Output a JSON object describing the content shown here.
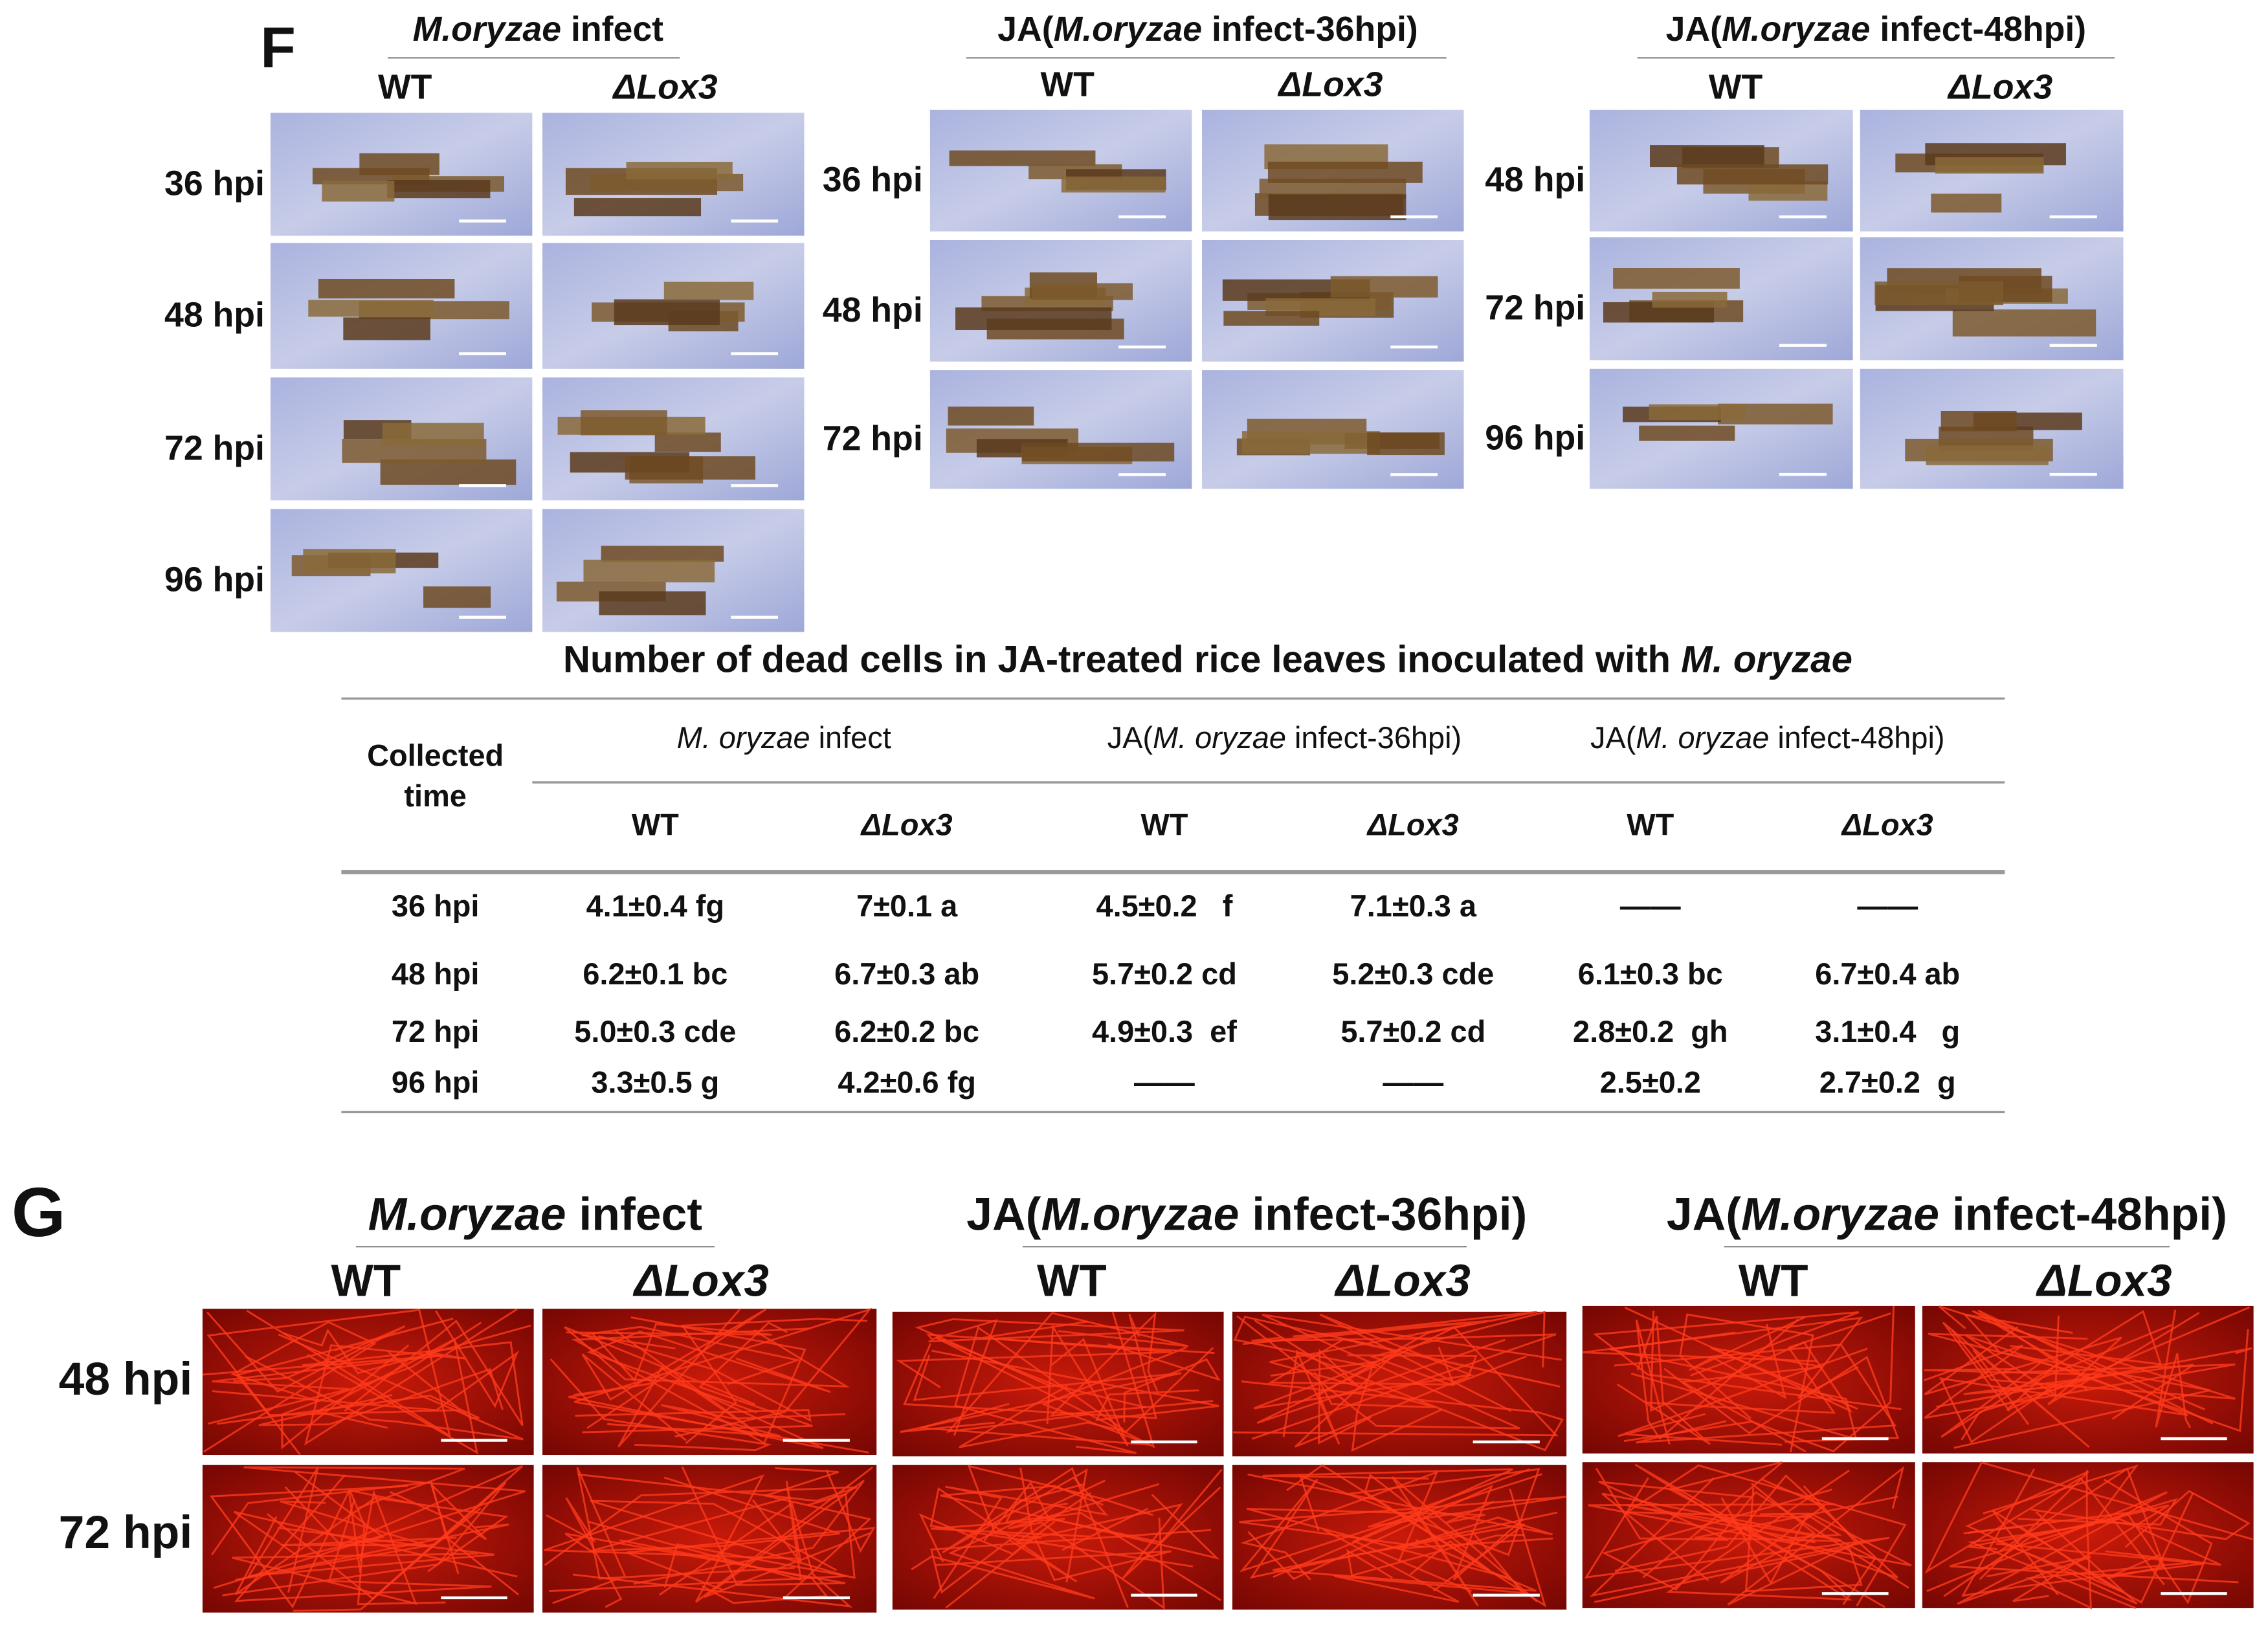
{
  "panel_f": {
    "label": "F",
    "columns": [
      "WT",
      "ΔLox3"
    ],
    "groups": [
      {
        "title_parts": [
          "M.oryzae",
          " infect"
        ],
        "italic_part": 0,
        "rows": [
          "36 hpi",
          "48 hpi",
          "72 hpi",
          "96 hpi"
        ]
      },
      {
        "title_parts": [
          "JA(",
          "M.oryzae",
          " infect-36hpi)"
        ],
        "italic_part": 1,
        "rows": [
          "36 hpi",
          "48 hpi",
          "72 hpi"
        ]
      },
      {
        "title_parts": [
          "JA(",
          "M.oryzae",
          " infect-48hpi)"
        ],
        "italic_part": 1,
        "rows": [
          "48 hpi",
          "72 hpi",
          "96 hpi"
        ]
      }
    ]
  },
  "table": {
    "title_parts": [
      "Number of dead cells in JA-treated rice leaves inoculated with ",
      "M. oryzae"
    ],
    "row_header": [
      "Collected",
      "time"
    ],
    "group_headers": [
      {
        "parts": [
          "M. oryzae",
          " infect"
        ],
        "italic_part": 0
      },
      {
        "parts": [
          "JA(",
          "M. oryzae",
          " infect-36hpi)"
        ],
        "italic_part": 1
      },
      {
        "parts": [
          "JA(",
          "M. oryzae",
          " infect-48hpi)"
        ],
        "italic_part": 1
      }
    ],
    "sub_headers": [
      "WT",
      "ΔLox3",
      "WT",
      "ΔLox3",
      "WT",
      "ΔLox3"
    ],
    "rows": [
      [
        "36 hpi",
        "4.1±0.4 fg",
        "7±0.1 a",
        "4.5±0.2   f",
        "7.1±0.3 a",
        "——",
        "——"
      ],
      [
        "48 hpi",
        "6.2±0.1 bc",
        "6.7±0.3 ab",
        "5.7±0.2 cd",
        "5.2±0.3 cde",
        "6.1±0.3 bc",
        "6.7±0.4 ab"
      ],
      [
        "72 hpi",
        "5.0±0.3 cde",
        "6.2±0.2 bc",
        "4.9±0.3  ef",
        "5.7±0.2 cd",
        "2.8±0.2  gh",
        "3.1±0.4   g"
      ],
      [
        "96 hpi",
        "3.3±0.5 g",
        "4.2±0.6 fg",
        "——",
        "——",
        "2.5±0.2",
        "2.7±0.2  g"
      ]
    ]
  },
  "panel_g": {
    "label": "G",
    "columns": [
      "WT",
      "ΔLox3"
    ],
    "groups": [
      {
        "title_parts": [
          "M.oryzae",
          " infect"
        ],
        "italic_part": 0
      },
      {
        "title_parts": [
          "JA(",
          "M.oryzae",
          " infect-36hpi)"
        ],
        "italic_part": 1
      },
      {
        "title_parts": [
          "JA(",
          "M.oryzae",
          " infect-48hpi)"
        ],
        "italic_part": 1
      }
    ],
    "rows": [
      "48 hpi",
      "72 hpi"
    ]
  }
}
